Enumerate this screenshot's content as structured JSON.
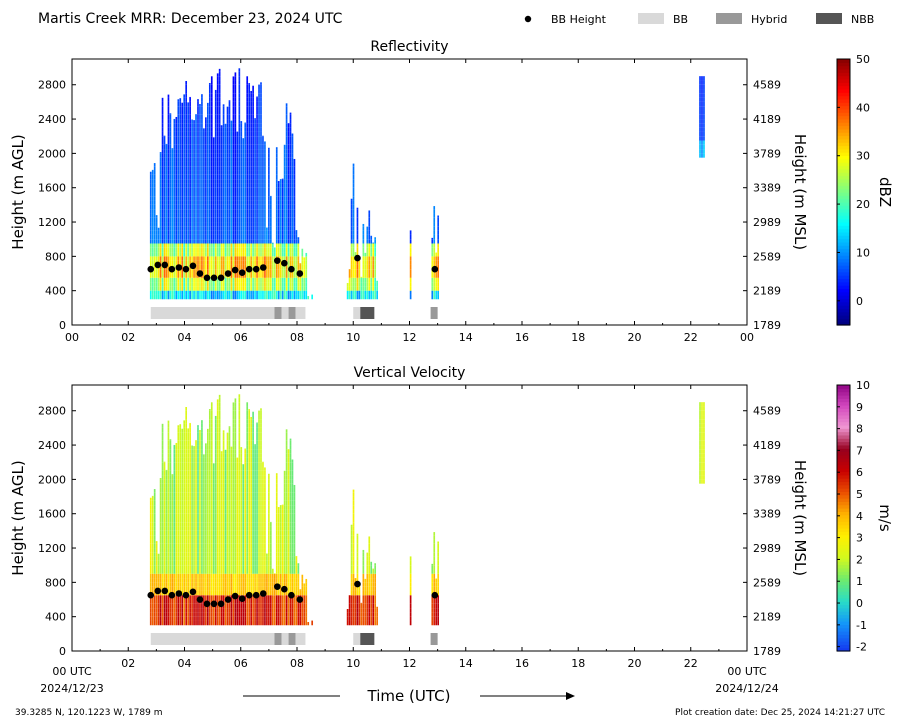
{
  "header": {
    "title": "Martis Creek MRR:  December 23, 2024 UTC",
    "legend": [
      {
        "label": "BB Height",
        "kind": "dot",
        "color": "#000000"
      },
      {
        "label": "BB",
        "kind": "box",
        "color": "#d9d9d9"
      },
      {
        "label": "Hybrid",
        "kind": "box",
        "color": "#999999"
      },
      {
        "label": "NBB",
        "kind": "box",
        "color": "#555555"
      }
    ]
  },
  "footer": {
    "location": "39.3285 N, 120.1223 W, 1789 m",
    "created": "Plot creation date: Dec 25, 2024 14:21:27 UTC",
    "xlabel": "Time (UTC)",
    "start_date": "2024/12/23",
    "end_date": "2024/12/24",
    "start_label": "00 UTC",
    "end_label": "00 UTC"
  },
  "chart_data": [
    {
      "type": "heatmap",
      "title": "Reflectivity",
      "ylabel": "Height (m AGL)",
      "y2label": "Height (m MSL)",
      "colorbar_label": "dBZ",
      "xlim": [
        0,
        24
      ],
      "ylim": [
        0,
        3100
      ],
      "x_ticks": [
        "00",
        "02",
        "04",
        "06",
        "08",
        "10",
        "12",
        "14",
        "16",
        "18",
        "20",
        "22",
        "00"
      ],
      "y_ticks": [
        0,
        400,
        800,
        1200,
        1600,
        2000,
        2400,
        2800
      ],
      "y2_ticks": [
        "1789",
        "2189",
        "2589",
        "2989",
        "3389",
        "3789",
        "4189",
        "4589"
      ],
      "colorbar_range": [
        -5,
        50
      ],
      "colorbar_ticks": [
        0,
        10,
        20,
        30,
        40,
        50
      ],
      "field": "reflectivity",
      "bb_height": [
        [
          2.8,
          650
        ],
        [
          3.05,
          700
        ],
        [
          3.3,
          700
        ],
        [
          3.55,
          650
        ],
        [
          3.8,
          670
        ],
        [
          4.05,
          650
        ],
        [
          4.3,
          690
        ],
        [
          4.55,
          600
        ],
        [
          4.8,
          550
        ],
        [
          5.05,
          550
        ],
        [
          5.3,
          550
        ],
        [
          5.55,
          600
        ],
        [
          5.8,
          640
        ],
        [
          6.05,
          610
        ],
        [
          6.3,
          650
        ],
        [
          6.55,
          650
        ],
        [
          6.8,
          670
        ],
        [
          7.3,
          750
        ],
        [
          7.55,
          720
        ],
        [
          7.8,
          650
        ],
        [
          8.1,
          600
        ],
        [
          10.15,
          780
        ],
        [
          12.9,
          650
        ]
      ],
      "bb_type": [
        {
          "start": 2.8,
          "end": 7.2,
          "type": "BB"
        },
        {
          "start": 7.2,
          "end": 7.45,
          "type": "Hybrid"
        },
        {
          "start": 7.45,
          "end": 7.7,
          "type": "BB"
        },
        {
          "start": 7.7,
          "end": 7.95,
          "type": "Hybrid"
        },
        {
          "start": 7.95,
          "end": 8.3,
          "type": "BB"
        },
        {
          "start": 10.0,
          "end": 10.25,
          "type": "BB"
        },
        {
          "start": 10.25,
          "end": 10.75,
          "type": "NBB"
        },
        {
          "start": 12.75,
          "end": 13.0,
          "type": "Hybrid"
        }
      ]
    },
    {
      "type": "heatmap",
      "title": "Vertical Velocity",
      "ylabel": "Height (m AGL)",
      "y2label": "Height (m MSL)",
      "colorbar_label": "m/s",
      "xlim": [
        0,
        24
      ],
      "ylim": [
        0,
        3100
      ],
      "x_ticks": [
        "",
        "02",
        "04",
        "06",
        "08",
        "10",
        "12",
        "14",
        "16",
        "18",
        "20",
        "22",
        ""
      ],
      "y_ticks": [
        0,
        400,
        800,
        1200,
        1600,
        2000,
        2400,
        2800
      ],
      "y2_ticks": [
        "1789",
        "2189",
        "2589",
        "2989",
        "3389",
        "3789",
        "4189",
        "4589"
      ],
      "colorbar_range": [
        -2.2,
        10
      ],
      "colorbar_ticks": [
        -2,
        -1,
        0,
        1,
        2,
        3,
        4,
        5,
        6,
        7,
        8,
        9,
        10
      ],
      "field": "velocity",
      "bb_height": [
        [
          2.8,
          650
        ],
        [
          3.05,
          700
        ],
        [
          3.3,
          700
        ],
        [
          3.55,
          650
        ],
        [
          3.8,
          670
        ],
        [
          4.05,
          650
        ],
        [
          4.3,
          690
        ],
        [
          4.55,
          600
        ],
        [
          4.8,
          550
        ],
        [
          5.05,
          550
        ],
        [
          5.3,
          550
        ],
        [
          5.55,
          600
        ],
        [
          5.8,
          640
        ],
        [
          6.05,
          610
        ],
        [
          6.3,
          650
        ],
        [
          6.55,
          650
        ],
        [
          6.8,
          670
        ],
        [
          7.3,
          750
        ],
        [
          7.55,
          720
        ],
        [
          7.8,
          650
        ],
        [
          8.1,
          600
        ],
        [
          10.15,
          780
        ],
        [
          12.9,
          650
        ]
      ],
      "bb_type": [
        {
          "start": 2.8,
          "end": 7.2,
          "type": "BB"
        },
        {
          "start": 7.2,
          "end": 7.45,
          "type": "Hybrid"
        },
        {
          "start": 7.45,
          "end": 7.7,
          "type": "BB"
        },
        {
          "start": 7.7,
          "end": 7.95,
          "type": "Hybrid"
        },
        {
          "start": 7.95,
          "end": 8.3,
          "type": "BB"
        },
        {
          "start": 10.0,
          "end": 10.25,
          "type": "BB"
        },
        {
          "start": 10.25,
          "end": 10.75,
          "type": "NBB"
        },
        {
          "start": 12.75,
          "end": 13.0,
          "type": "Hybrid"
        }
      ]
    }
  ]
}
